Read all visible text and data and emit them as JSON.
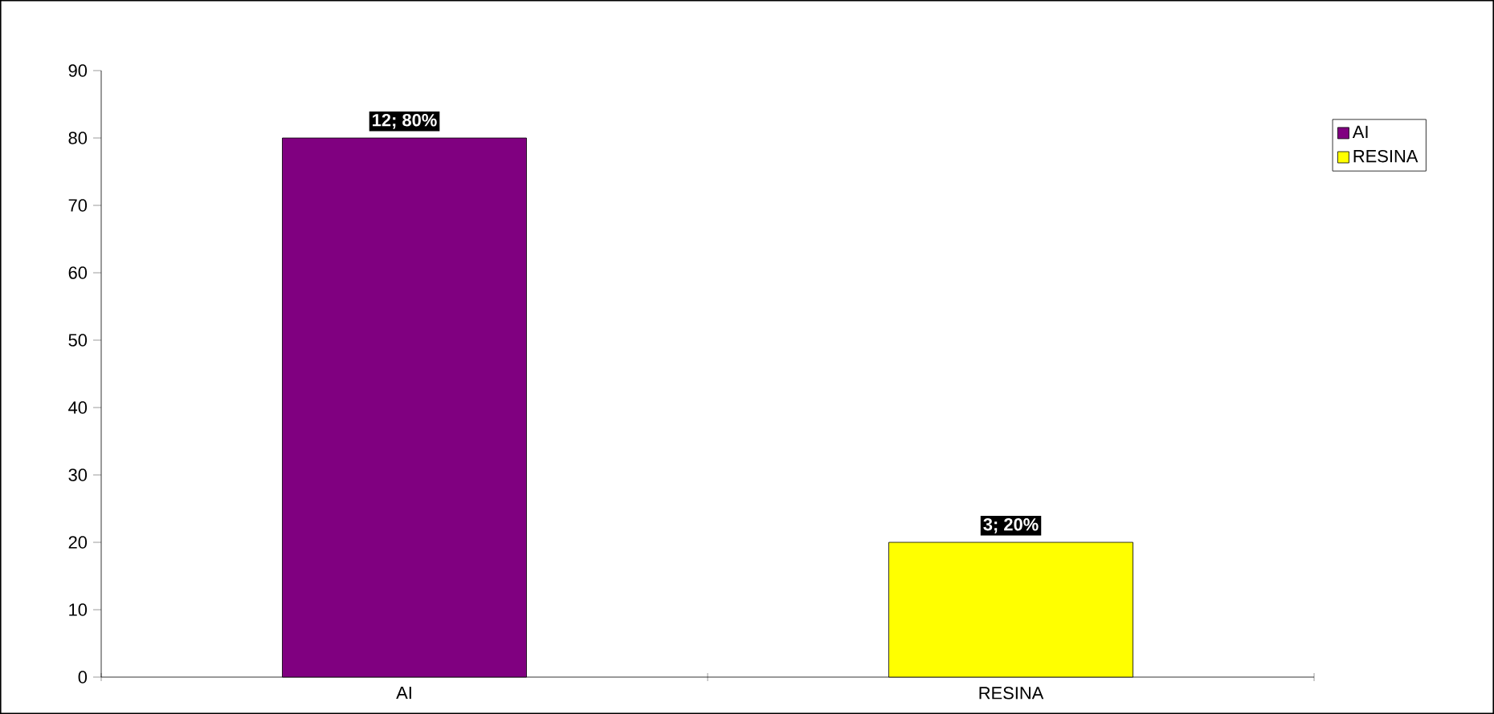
{
  "chart_data": {
    "type": "bar",
    "categories": [
      "AI",
      "RESINA"
    ],
    "series": [
      {
        "name": "AI",
        "color": "#800080",
        "values": [
          80,
          null
        ],
        "value_labels": [
          "12;  80%",
          null
        ]
      },
      {
        "name": "RESINA",
        "color": "#ffff00",
        "values": [
          null,
          20
        ],
        "value_labels": [
          null,
          "3; 20%"
        ]
      }
    ],
    "ylim": [
      0,
      90
    ],
    "yticks": [
      0,
      10,
      20,
      30,
      40,
      50,
      60,
      70,
      80,
      90
    ],
    "grid": false,
    "legend": "top right"
  }
}
